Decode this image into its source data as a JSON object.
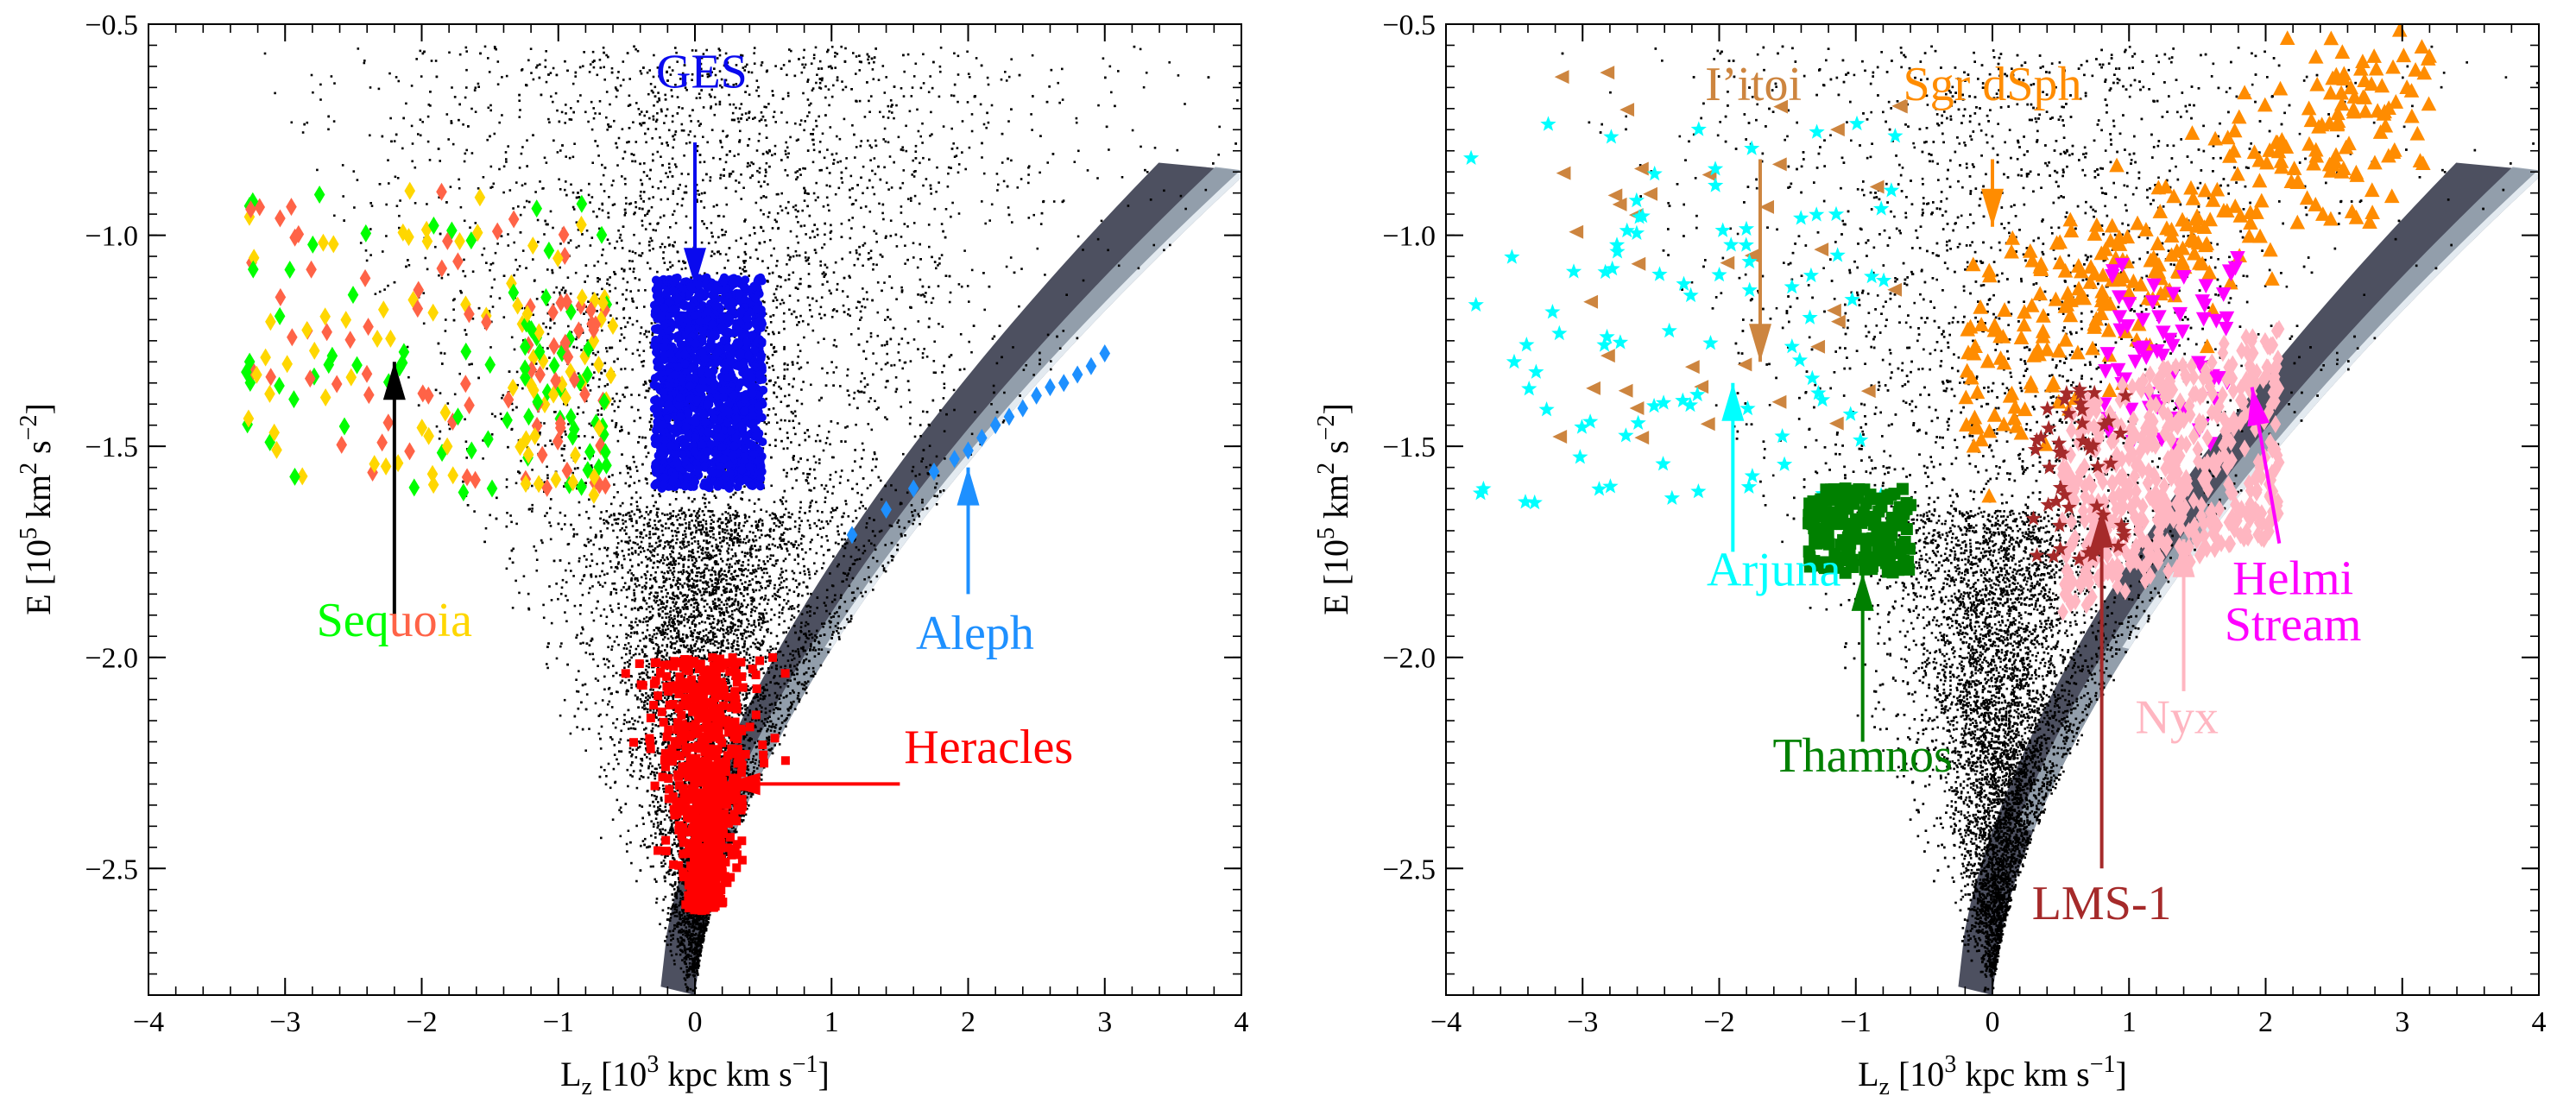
{
  "figure_bg": "#ffffff",
  "frame_color": "#000000",
  "chart_data": [
    {
      "type": "scatter",
      "panel": "left",
      "xlabel_main": "L",
      "xlabel_sub": "z",
      "xlabel_rest": " [10",
      "xlabel_exp": "3",
      "xlabel_tail": " kpc km s",
      "xlabel_exp2": "−1",
      "xlabel_close": "]",
      "ylabel_main": "E [10",
      "ylabel_exp": "5",
      "ylabel_mid": " km",
      "ylabel_exp2": "2",
      "ylabel_mid2": " s",
      "ylabel_exp3": "−2",
      "ylabel_close": "]",
      "xlim": [
        -4,
        4
      ],
      "ylim": [
        -2.8,
        -0.5
      ],
      "xticks": [
        "−4",
        "−3",
        "−2",
        "−1",
        "0",
        "1",
        "2",
        "3",
        "4"
      ],
      "yticks": [
        "−2.5",
        "−2.0",
        "−1.5",
        "−1.0",
        "−0.5"
      ],
      "background": "field-star density (black scatter + grey-blue dense envelope)",
      "series": [
        {
          "name": "GES",
          "color": "#0a0aee",
          "marker": "circle",
          "region": {
            "x": [
              -0.55,
              0.5
            ],
            "y": [
              -1.6,
              -1.1
            ]
          },
          "label_pos": {
            "x": 0.05,
            "y": -0.65
          },
          "label_color": "#0a0aee",
          "arrow": {
            "from": [
              0.0,
              -0.78
            ],
            "to": [
              0.0,
              -1.12
            ]
          }
        },
        {
          "name": "Heracles",
          "color": "#ff0000",
          "marker": "square",
          "region": {
            "x": [
              -0.35,
              0.4
            ],
            "y": [
              -2.6,
              -2.0
            ]
          },
          "label_pos": {
            "x": 2.15,
            "y": -2.25
          },
          "label_color": "#ff0000",
          "arrow": {
            "from": [
              1.5,
              -2.3
            ],
            "to": [
              0.2,
              -2.3
            ]
          }
        },
        {
          "name": "Aleph",
          "color": "#1e90ff",
          "marker": "diamond",
          "points": [
            [
              1.15,
              -1.71
            ],
            [
              1.4,
              -1.65
            ],
            [
              1.6,
              -1.6
            ],
            [
              1.75,
              -1.56
            ],
            [
              1.9,
              -1.53
            ],
            [
              2.0,
              -1.51
            ],
            [
              2.1,
              -1.48
            ],
            [
              2.2,
              -1.45
            ],
            [
              2.3,
              -1.43
            ],
            [
              2.4,
              -1.41
            ],
            [
              2.5,
              -1.38
            ],
            [
              2.6,
              -1.36
            ],
            [
              2.7,
              -1.35
            ],
            [
              2.8,
              -1.33
            ],
            [
              2.9,
              -1.31
            ],
            [
              3.0,
              -1.28
            ]
          ],
          "label_pos": {
            "x": 2.05,
            "y": -1.98
          },
          "label_color": "#1e90ff",
          "arrow": {
            "from": [
              2.0,
              -1.85
            ],
            "to": [
              2.0,
              -1.55
            ]
          }
        },
        {
          "name": "Sequoia",
          "color": "#00ff00",
          "marker": "diamond",
          "label_pos": {
            "x": -2.2,
            "y": -1.95
          },
          "label_parts": [
            {
              "text": "Seq",
              "color": "#00ff00"
            },
            {
              "text": "u",
              "color": "#ff6347"
            },
            {
              "text": "o",
              "color": "#ff6347"
            },
            {
              "text": "ia",
              "color": "#ffd700"
            }
          ],
          "arrow": {
            "from": [
              -2.2,
              -1.9
            ],
            "to": [
              -2.2,
              -1.3
            ]
          },
          "sub_colors": [
            "#00ff00",
            "#ff6347",
            "#ffd700"
          ]
        }
      ]
    },
    {
      "type": "scatter",
      "panel": "right",
      "xlabel_main": "L",
      "xlabel_sub": "z",
      "xlabel_rest": " [10",
      "xlabel_exp": "3",
      "xlabel_tail": " kpc km s",
      "xlabel_exp2": "−1",
      "xlabel_close": "]",
      "ylabel_main": "E [10",
      "ylabel_exp": "5",
      "ylabel_mid": " km",
      "ylabel_exp2": "2",
      "ylabel_mid2": " s",
      "ylabel_exp3": "−2",
      "ylabel_close": "]",
      "xlim": [
        -4,
        4
      ],
      "ylim": [
        -2.8,
        -0.5
      ],
      "xticks": [
        "−4",
        "−3",
        "−2",
        "−1",
        "0",
        "1",
        "2",
        "3",
        "4"
      ],
      "yticks": [
        "−2.5",
        "−2.0",
        "−1.5",
        "−1.0",
        "−0.5"
      ],
      "series": [
        {
          "name": "I’itoi",
          "color": "#cd853f",
          "marker": "triangle-left",
          "label_pos": {
            "x": -1.75,
            "y": -0.68
          },
          "label_color": "#cd853f",
          "arrow": {
            "from": [
              -1.7,
              -0.82
            ],
            "to": [
              -1.7,
              -1.3
            ]
          }
        },
        {
          "name": "Sgr dSph",
          "color": "#ff8c00",
          "marker": "triangle-up",
          "label_pos": {
            "x": 0.0,
            "y": -0.68
          },
          "label_color": "#ff8c00",
          "arrow": {
            "from": [
              0.0,
              -0.82
            ],
            "to": [
              0.0,
              -0.98
            ]
          }
        },
        {
          "name": "Arjuna",
          "color": "#00ffff",
          "marker": "star",
          "label_pos": {
            "x": -1.6,
            "y": -1.83
          },
          "label_color": "#00ffff",
          "arrow": {
            "from": [
              -1.9,
              -1.75
            ],
            "to": [
              -1.9,
              -1.35
            ]
          }
        },
        {
          "name": "Thamnos",
          "color": "#008000",
          "marker": "square",
          "label_pos": {
            "x": -0.95,
            "y": -2.27
          },
          "label_color": "#008000",
          "arrow": {
            "from": [
              -0.95,
              -2.2
            ],
            "to": [
              -0.95,
              -1.8
            ]
          }
        },
        {
          "name": "Helmi",
          "name2": "Stream",
          "color": "#ff00ff",
          "marker": "triangle-down",
          "label_pos": {
            "x": 2.2,
            "y": -1.85
          },
          "label_color": "#ff00ff",
          "arrow": {
            "from": [
              2.1,
              -1.73
            ],
            "to": [
              1.9,
              -1.36
            ]
          }
        },
        {
          "name": "Nyx",
          "color": "#ffb6c1",
          "marker": "diamond",
          "label_pos": {
            "x": 1.35,
            "y": -2.18
          },
          "label_color": "#ffb6c1",
          "arrow": {
            "from": [
              1.4,
              -2.08
            ],
            "to": [
              1.4,
              -1.72
            ]
          }
        },
        {
          "name": "LMS-1",
          "color": "#a52a2a",
          "marker": "star",
          "label_pos": {
            "x": 0.8,
            "y": -2.62
          },
          "label_color": "#a52a2a",
          "arrow": {
            "from": [
              0.8,
              -2.5
            ],
            "to": [
              0.8,
              -1.65
            ]
          }
        }
      ]
    }
  ]
}
